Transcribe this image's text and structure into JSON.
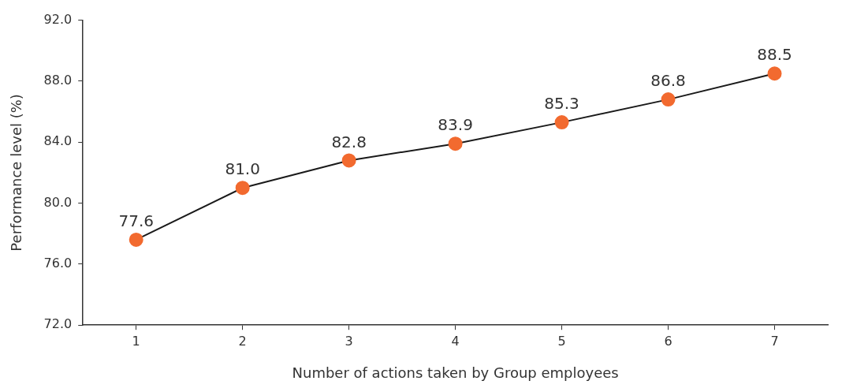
{
  "chart_data": {
    "type": "line",
    "xlabel": "Number of actions taken by Group employees",
    "ylabel": "Performance level (%)",
    "categories": [
      "1",
      "2",
      "3",
      "4",
      "5",
      "6",
      "7"
    ],
    "series": [
      {
        "color": "#f26a2f",
        "values": [
          77.6,
          81.0,
          82.8,
          83.9,
          85.3,
          86.8,
          88.5
        ],
        "value_labels": [
          "77.6",
          "81.0",
          "82.8",
          "83.9",
          "85.3",
          "86.8",
          "88.5"
        ]
      }
    ],
    "ylim": [
      72,
      92
    ],
    "yticks": [
      {
        "value": 72,
        "label": "72.0"
      },
      {
        "value": 76,
        "label": "76.0"
      },
      {
        "value": 80,
        "label": "80.0"
      },
      {
        "value": 84,
        "label": "84.0"
      },
      {
        "value": 88,
        "label": "88.0"
      },
      {
        "value": 92,
        "label": "92.0"
      }
    ],
    "marker": "circle",
    "line_style": "solid",
    "legend": false
  }
}
